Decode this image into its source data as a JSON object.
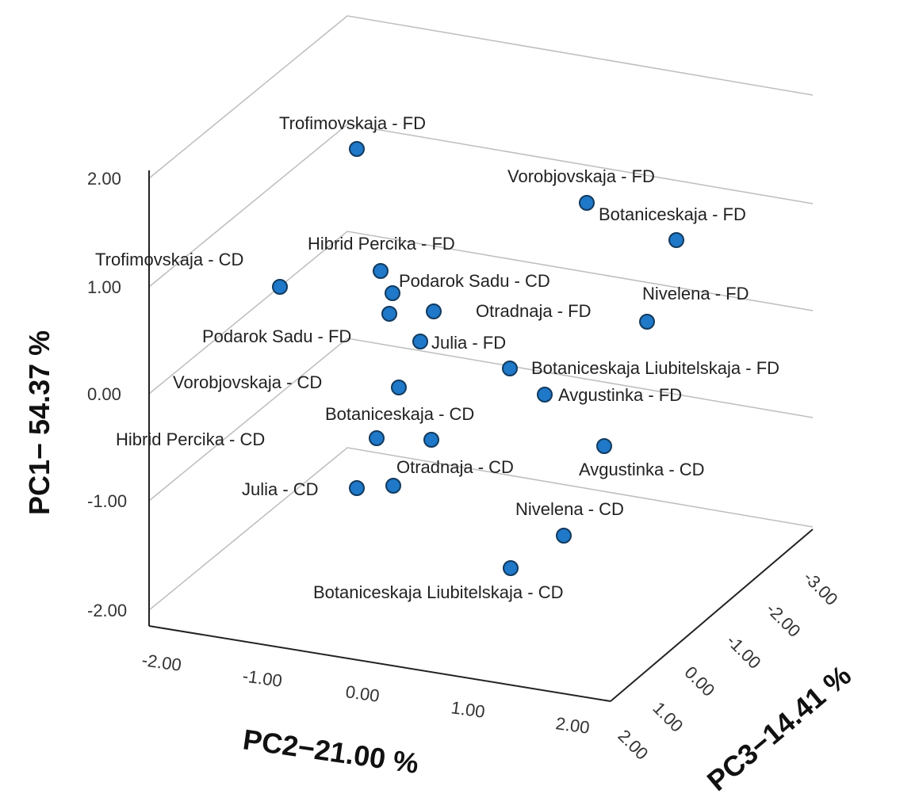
{
  "chart_data": {
    "type": "scatter",
    "projection": "3d",
    "title": "",
    "axes": {
      "y": {
        "label": "PC1− 54.37 %",
        "ticks": [
          "2.00",
          "1.00",
          "0.00",
          "-1.00",
          "-2.00"
        ],
        "range": [
          -2,
          2
        ]
      },
      "x": {
        "label": "PC2−21.00 %",
        "ticks": [
          "-2.00",
          "-1.00",
          "0.00",
          "1.00",
          "2.00"
        ],
        "range": [
          -2,
          2
        ]
      },
      "z": {
        "label": "PC3−14.41 %",
        "ticks": [
          "2.00",
          "1.00",
          "0.00",
          "-1.00",
          "-2.00",
          "-3.00"
        ],
        "range": [
          -3,
          2
        ]
      }
    },
    "grid": true,
    "marker_color": "#1f78c8",
    "points": [
      {
        "label": "Trofimovskaja - FD"
      },
      {
        "label": "Vorobjovskaja - FD"
      },
      {
        "label": "Botaniceskaja - FD"
      },
      {
        "label": "Hibrid Percika - FD"
      },
      {
        "label": "Trofimovskaja - CD"
      },
      {
        "label": "Podarok Sadu - CD"
      },
      {
        "label": "Nivelena - FD"
      },
      {
        "label": "Otradnaja - FD"
      },
      {
        "label": "Podarok Sadu - FD"
      },
      {
        "label": "Julia - FD"
      },
      {
        "label": "Botaniceskaja Liubitelskaja - FD"
      },
      {
        "label": "Vorobjovskaja - CD"
      },
      {
        "label": "Avgustinka - FD"
      },
      {
        "label": "Botaniceskaja - CD"
      },
      {
        "label": "Hibrid Percika - CD"
      },
      {
        "label": "Avgustinka - CD"
      },
      {
        "label": "Otradnaja - CD"
      },
      {
        "label": "Julia - CD"
      },
      {
        "label": "Nivelena - CD"
      },
      {
        "label": "Botaniceskaja Liubitelskaja - CD"
      }
    ]
  }
}
